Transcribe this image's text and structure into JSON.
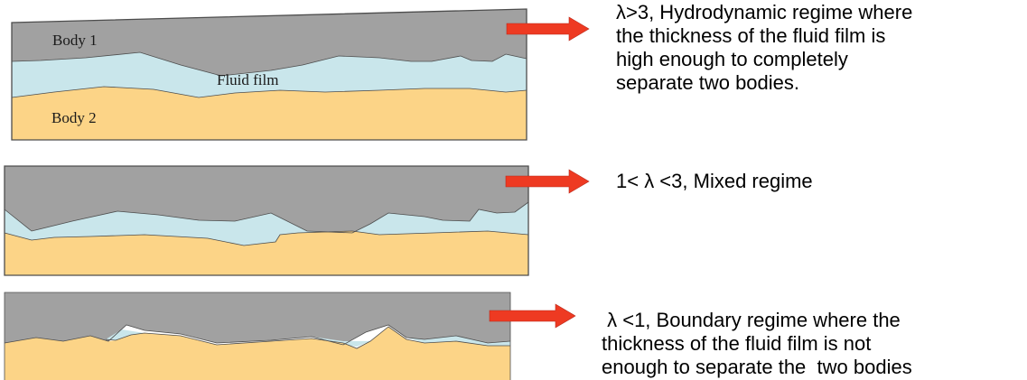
{
  "colors": {
    "body1": "#a1a1a1",
    "fluid_film": "#c9e6eb",
    "body2": "#fcd487",
    "outline": "#4d4d4d",
    "arrow": "#ee3a22"
  },
  "panels": [
    {
      "labels": {
        "body1": "Body 1",
        "fluid_film": "Fluid film",
        "body2": "Body 2"
      },
      "description_lines": [
        "λ>3, Hydrodynamic regime where",
        "the thickness of the fluid film is",
        "high enough to completely",
        "separate two bodies."
      ]
    },
    {
      "description_lines": [
        "1< λ <3, Mixed regime"
      ]
    },
    {
      "description_lines": [
        " λ <1, Boundary regime where the",
        "thickness of the fluid film is not",
        "enough to separate the  two bodies"
      ]
    }
  ]
}
